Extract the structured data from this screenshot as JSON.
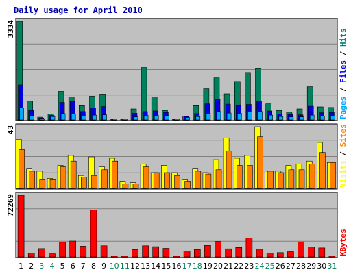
{
  "chart_data": {
    "type": "bar",
    "title": "Daily usage for April 2010",
    "days": [
      "1",
      "2",
      "3",
      "4",
      "5",
      "6",
      "7",
      "8",
      "9",
      "10",
      "11",
      "12",
      "13",
      "14",
      "15",
      "16",
      "17",
      "18",
      "19",
      "20",
      "21",
      "22",
      "23",
      "24",
      "25",
      "26",
      "27",
      "28",
      "29",
      "30",
      "31"
    ],
    "weekend_days": [
      "3",
      "4",
      "10",
      "11",
      "17",
      "18",
      "24",
      "25",
      "31"
    ],
    "panels": [
      {
        "name": "pages-files-hits",
        "max_label": "3334",
        "ylim": [
          0,
          3334
        ],
        "legend": [
          {
            "text": "Pages",
            "color": "#00aaff"
          },
          {
            "text": "Files",
            "color": "#0000ff"
          },
          {
            "text": "Hits",
            "color": "#008080"
          }
        ],
        "series": [
          {
            "name": "Hits",
            "color": "#00805c",
            "values": [
              3334,
              630,
              90,
              200,
              960,
              780,
              480,
              800,
              870,
              30,
              30,
              370,
              1770,
              780,
              320,
              40,
              130,
              480,
              1050,
              1420,
              880,
              1300,
              1600,
              1750,
              540,
              320,
              260,
              370,
              1120,
              440,
              420
            ]
          },
          {
            "name": "Files",
            "color": "#0000e0",
            "values": [
              1180,
              320,
              60,
              150,
              590,
              620,
              280,
              410,
              450,
              20,
              20,
              220,
              280,
              300,
              250,
              30,
              110,
              210,
              540,
              700,
              530,
              480,
              520,
              630,
              300,
              200,
              180,
              170,
              460,
              240,
              250
            ]
          },
          {
            "name": "Pages",
            "color": "#00aaff",
            "values": [
              400,
              140,
              40,
              110,
              210,
              200,
              150,
              160,
              170,
              10,
              10,
              100,
              150,
              150,
              140,
              20,
              80,
              110,
              220,
              280,
              230,
              220,
              270,
              280,
              160,
              110,
              100,
              100,
              160,
              130,
              130
            ]
          }
        ]
      },
      {
        "name": "visits-sites",
        "max_label": "43",
        "ylim": [
          0,
          43
        ],
        "legend": [
          {
            "text": "Visits",
            "color": "#ffff00"
          },
          {
            "text": "Sites",
            "color": "#ff8000"
          }
        ],
        "series": [
          {
            "name": "Visits",
            "color": "#ffff00",
            "values": [
              34,
              14,
              12,
              7,
              16,
              23,
              9,
              22,
              15,
              21,
              5,
              4,
              17,
              11,
              16,
              11,
              6,
              14,
              11,
              20,
              35,
              21,
              23,
              43,
              12,
              12,
              16,
              17,
              19,
              32,
              18
            ]
          },
          {
            "name": "Sites",
            "color": "#ff8000",
            "values": [
              27,
              12,
              6,
              6,
              15,
              19,
              8,
              9,
              13,
              19,
              3,
              3,
              15,
              11,
              11,
              9,
              5,
              12,
              10,
              13,
              26,
              16,
              16,
              36,
              12,
              11,
              13,
              13,
              17,
              25,
              18
            ]
          }
        ]
      },
      {
        "name": "kbytes",
        "max_label": "72269",
        "ylim": [
          0,
          72269
        ],
        "legend": [
          {
            "text": "KBytes",
            "color": "#ff0000"
          }
        ],
        "series": [
          {
            "name": "KBytes",
            "color": "#ff0000",
            "values": [
              72269,
              4500,
              9700,
              3500,
              17000,
              18500,
              12500,
              55000,
              13000,
              300,
              300,
              8500,
              13000,
              12000,
              10000,
              300,
              7000,
              8500,
              13500,
              18000,
              9500,
              11000,
              22000,
              9000,
              4500,
              5000,
              6000,
              17500,
              11500,
              10500,
              300
            ]
          }
        ]
      }
    ]
  }
}
